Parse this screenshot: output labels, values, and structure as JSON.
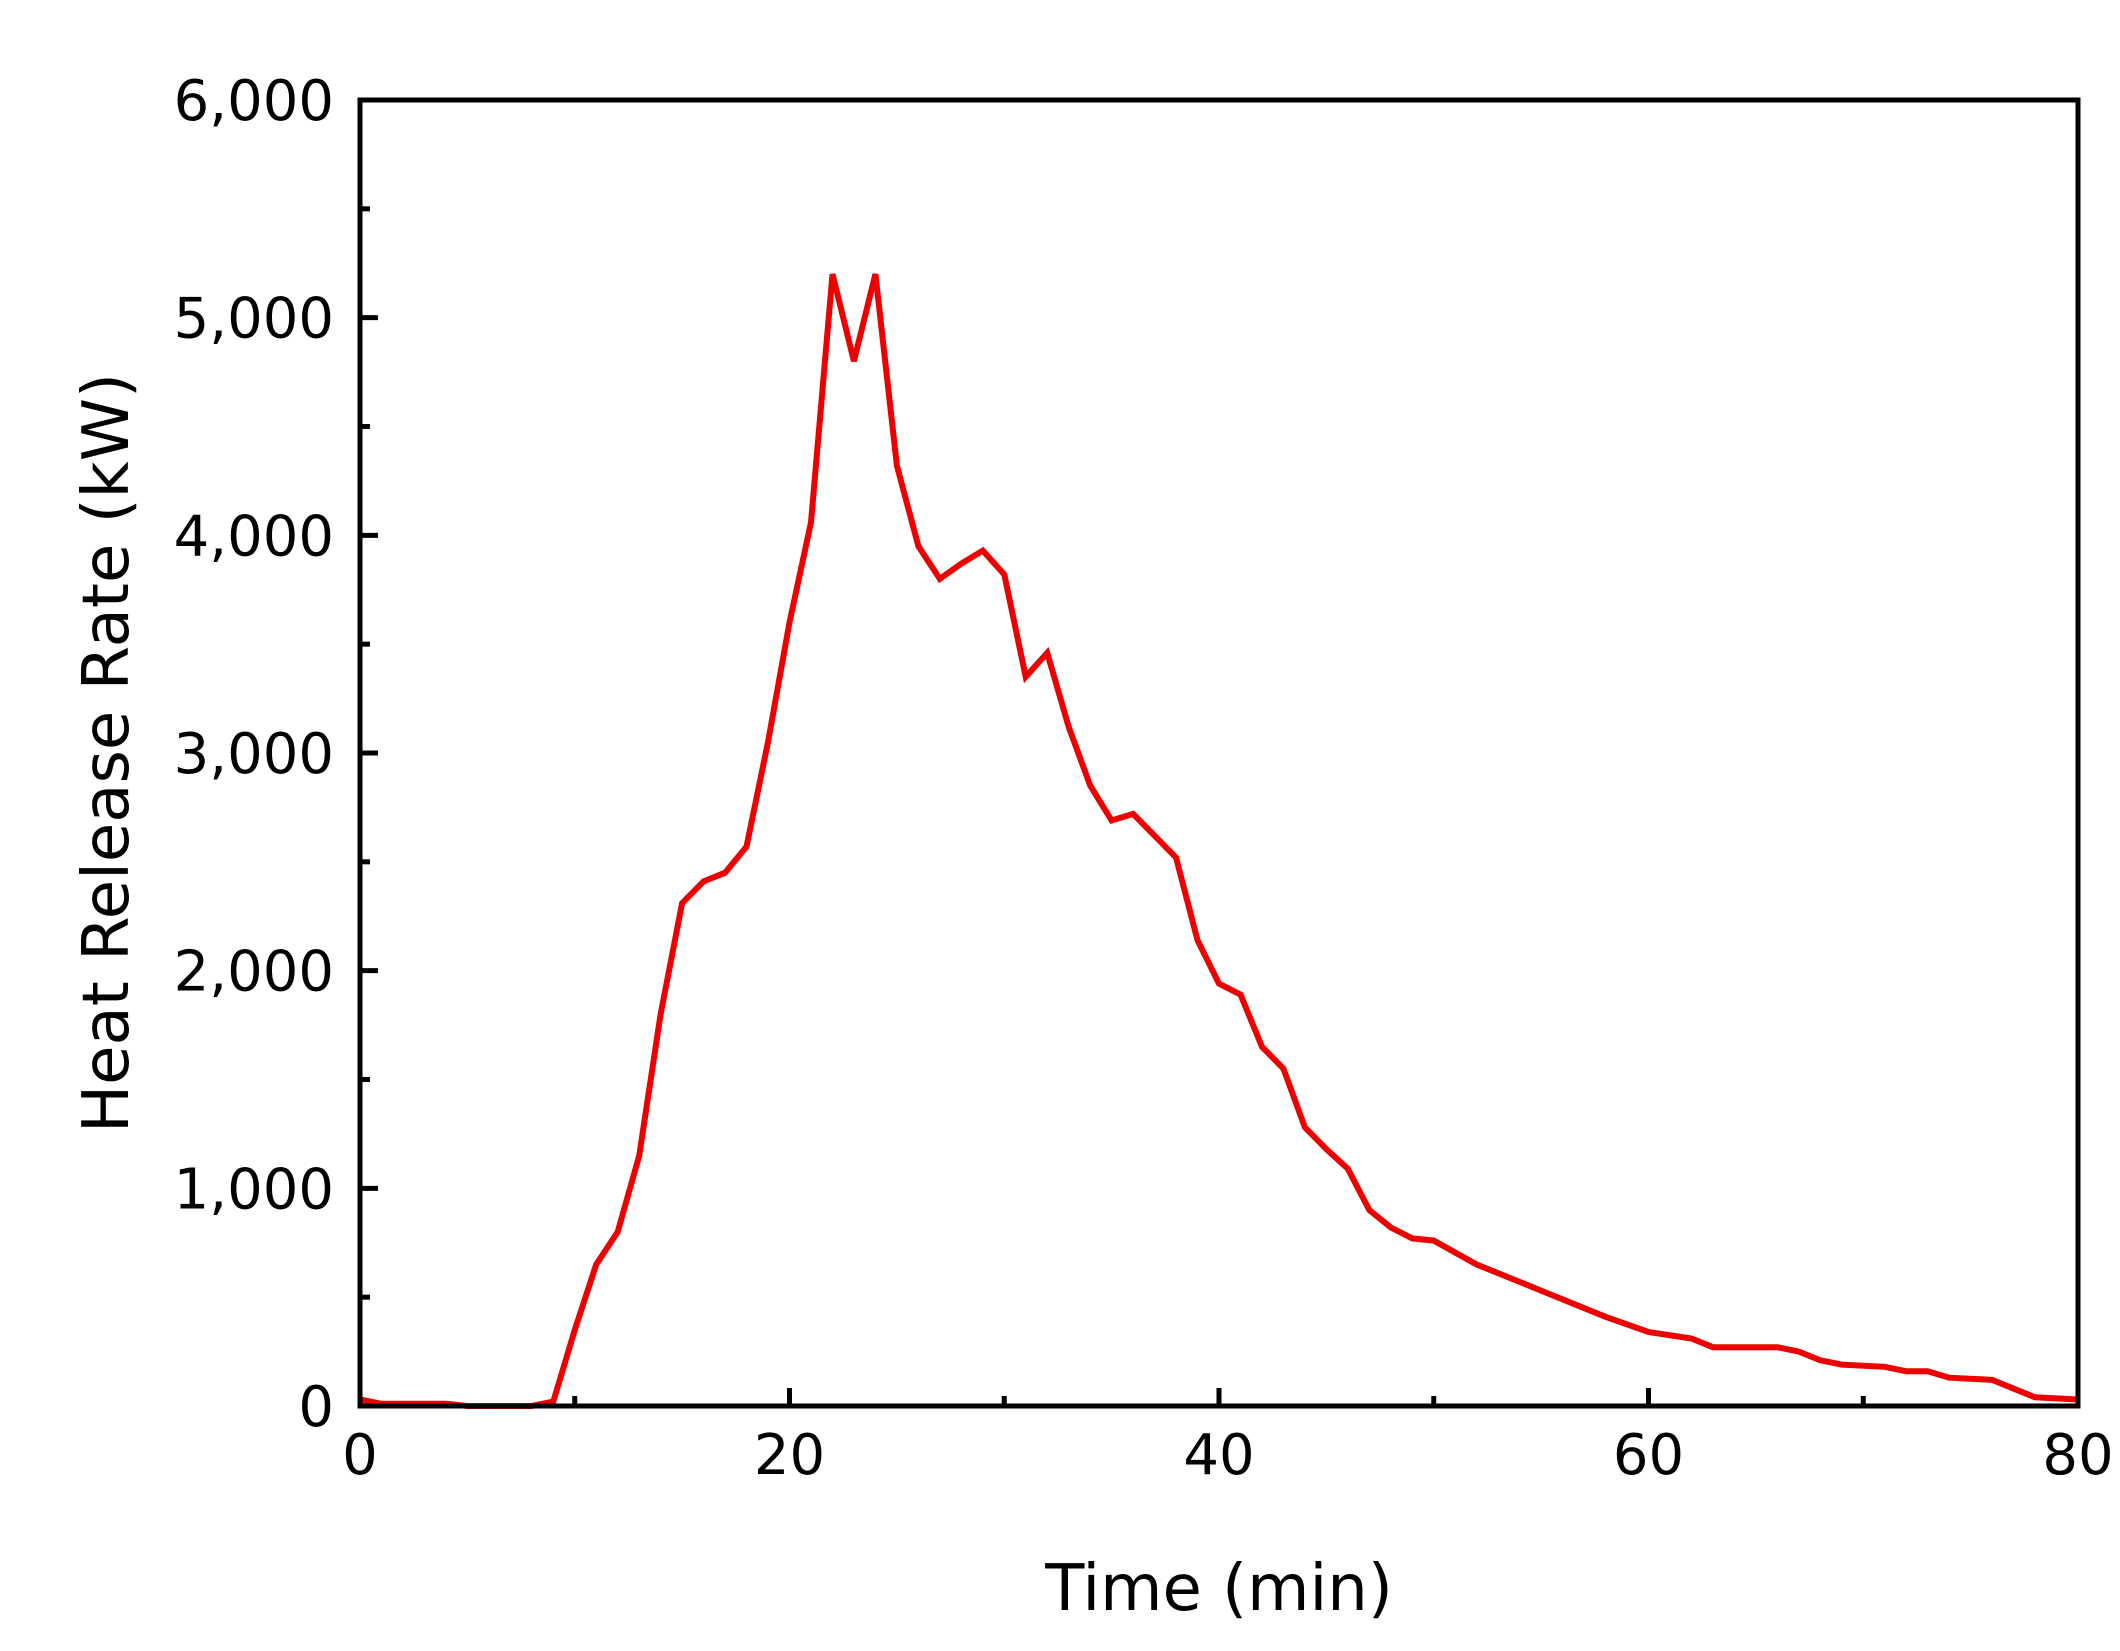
{
  "chart_data": {
    "type": "line",
    "title": "",
    "xlabel": "Time (min)",
    "ylabel": "Heat Release Rate (kW)",
    "xlim": [
      0,
      80
    ],
    "ylim": [
      0,
      6000
    ],
    "x_ticks": [
      0,
      20,
      40,
      60,
      80
    ],
    "x_tick_labels": [
      "0",
      "20",
      "40",
      "60",
      "80"
    ],
    "x_minor_ticks": [
      10,
      30,
      50,
      70
    ],
    "y_ticks": [
      0,
      1000,
      2000,
      3000,
      4000,
      5000,
      6000
    ],
    "y_tick_labels": [
      "0",
      "1,000",
      "2,000",
      "3,000",
      "4,000",
      "5,000",
      "6,000"
    ],
    "y_minor_ticks": [
      500,
      1500,
      2500,
      3500,
      4500,
      5500
    ],
    "grid": false,
    "legend": "none",
    "series": [
      {
        "color": "#ee0000",
        "x": [
          0,
          1,
          4,
          5,
          8,
          9,
          10,
          11,
          12,
          13,
          14,
          15,
          16,
          17,
          18,
          19,
          20,
          21,
          22,
          23,
          24,
          25,
          26,
          27,
          28,
          29,
          30,
          31,
          32,
          33,
          34,
          35,
          36,
          37,
          38,
          39,
          40,
          41,
          42,
          43,
          44,
          45,
          46,
          47,
          48,
          49,
          50,
          52,
          55,
          58,
          60,
          62,
          63,
          65,
          66,
          67,
          68,
          69,
          71,
          72,
          73,
          74,
          76,
          78,
          80
        ],
        "y": [
          30,
          10,
          10,
          0,
          0,
          20,
          350,
          650,
          800,
          1150,
          1800,
          2310,
          2410,
          2450,
          2570,
          3050,
          3600,
          4060,
          5200,
          4800,
          5200,
          4320,
          3950,
          3800,
          3870,
          3930,
          3820,
          3350,
          3460,
          3120,
          2850,
          2690,
          2720,
          2620,
          2520,
          2140,
          1940,
          1890,
          1650,
          1550,
          1280,
          1180,
          1090,
          900,
          820,
          770,
          760,
          650,
          530,
          410,
          340,
          310,
          270,
          270,
          270,
          250,
          210,
          190,
          180,
          160,
          160,
          130,
          120,
          40,
          30
        ]
      }
    ]
  }
}
